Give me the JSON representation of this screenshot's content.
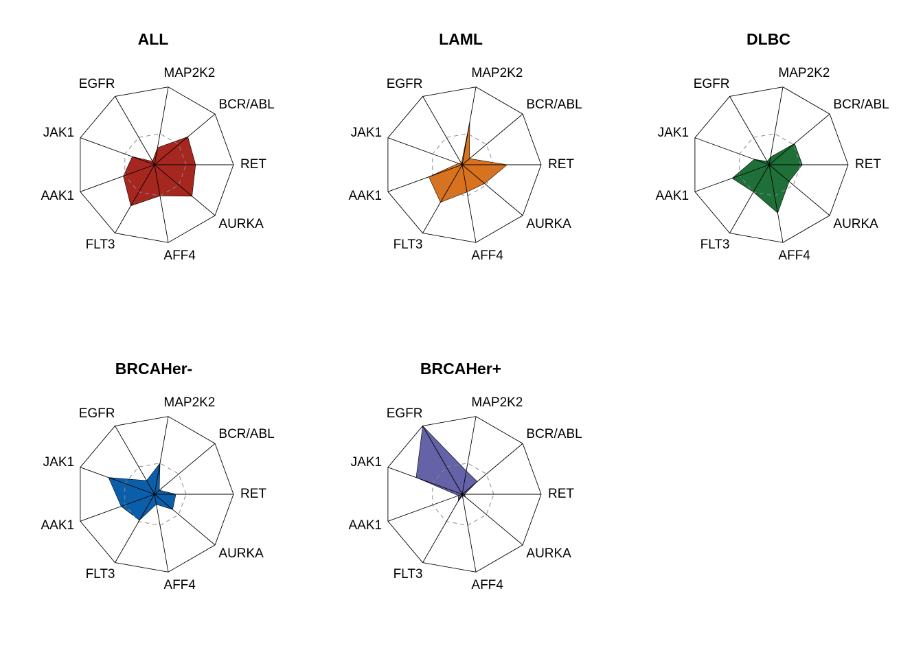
{
  "chart_data": {
    "type": "radar",
    "axes": [
      "RET",
      "BCR/ABL",
      "MAP2K2",
      "EGFR",
      "JAK1",
      "AAK1",
      "FLT3",
      "AFF4",
      "AURKA"
    ],
    "range": [
      0,
      1
    ],
    "reference_ring": 0.4,
    "grid": "web",
    "panels": [
      {
        "title": "ALL",
        "color": "#A6271F",
        "values": [
          0.52,
          0.55,
          0.22,
          0.05,
          0.3,
          0.42,
          0.6,
          0.4,
          0.62
        ]
      },
      {
        "title": "LAML",
        "color": "#D8721E",
        "values": [
          0.57,
          0.12,
          0.55,
          0.02,
          0.05,
          0.45,
          0.55,
          0.35,
          0.37
        ]
      },
      {
        "title": "DLBC",
        "color": "#1E7038",
        "values": [
          0.42,
          0.42,
          0.1,
          0.05,
          0.2,
          0.5,
          0.4,
          0.62,
          0.33
        ]
      },
      {
        "title": "BRCAHer-",
        "color": "#0B5FAA",
        "values": [
          0.27,
          0.08,
          0.4,
          0.2,
          0.62,
          0.45,
          0.38,
          0.13,
          0.3
        ]
      },
      {
        "title": "BRCAHer+",
        "color": "#6562A8",
        "values": [
          0.03,
          0.25,
          0.3,
          1.0,
          0.62,
          0.05,
          0.1,
          0.02,
          0.05
        ]
      }
    ]
  }
}
